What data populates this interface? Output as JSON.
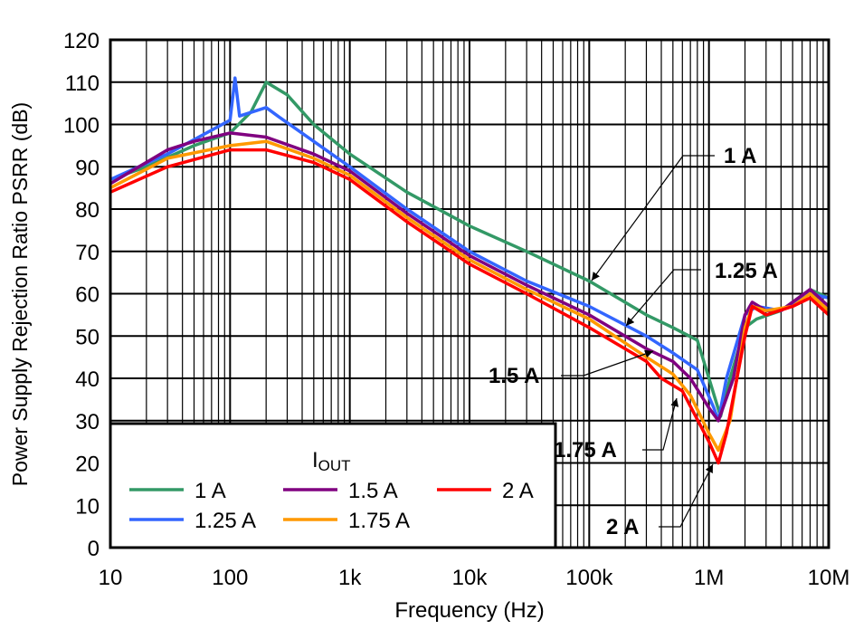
{
  "chart_data": {
    "type": "line",
    "title": "",
    "xlabel": "Frequency (Hz)",
    "ylabel": "Power Supply Rejection Ratio PSRR (dB)",
    "x_scale": "log",
    "xlim": [
      10,
      10000000
    ],
    "ylim": [
      0,
      120
    ],
    "grid": true,
    "x_ticks": [
      10,
      100,
      1000,
      10000,
      100000,
      1000000,
      10000000
    ],
    "x_tick_labels": [
      "10",
      "100",
      "1k",
      "10k",
      "100k",
      "1M",
      "10M"
    ],
    "y_ticks": [
      0,
      10,
      20,
      30,
      40,
      50,
      60,
      70,
      80,
      90,
      100,
      110,
      120
    ],
    "y_tick_labels": [
      "0",
      "10",
      "20",
      "30",
      "40",
      "50",
      "60",
      "70",
      "80",
      "90",
      "100",
      "110",
      "120"
    ],
    "legend": {
      "title": "I",
      "title_sub": "OUT",
      "placement": "bottom-left"
    },
    "series": [
      {
        "name": "1 A",
        "color": "#339966",
        "x": [
          10,
          20,
          50,
          100,
          150,
          200,
          300,
          500,
          1000,
          3000,
          10000,
          30000,
          100000,
          300000,
          500000,
          800000,
          1000000,
          1250000,
          1500000,
          2000000,
          2500000,
          4000000,
          7000000,
          10000000
        ],
        "y": [
          87,
          90,
          95,
          98,
          103,
          110,
          107,
          100,
          93,
          84,
          76,
          70,
          63,
          55,
          52,
          49,
          40,
          31,
          40,
          52,
          54,
          56,
          61,
          59
        ]
      },
      {
        "name": "1.25 A",
        "color": "#3366ff",
        "x": [
          10,
          30,
          100,
          110,
          120,
          200,
          250,
          500,
          1000,
          3000,
          10000,
          30000,
          100000,
          300000,
          500000,
          800000,
          1100000,
          1200000,
          1400000,
          2000000,
          2500000,
          4000000,
          7000000,
          10000000
        ],
        "y": [
          87,
          93,
          101,
          111,
          102,
          104,
          102,
          96,
          90,
          80,
          70,
          63,
          57,
          50,
          46,
          42,
          33,
          30,
          40,
          55,
          57,
          56,
          60,
          59
        ]
      },
      {
        "name": "1.5 A",
        "color": "#800080",
        "x": [
          10,
          30,
          50,
          100,
          200,
          500,
          1000,
          3000,
          10000,
          30000,
          100000,
          300000,
          500000,
          700000,
          1000000,
          1200000,
          1600000,
          2000000,
          2300000,
          3000000,
          4000000,
          7000000,
          10000000
        ],
        "y": [
          86,
          94,
          96,
          98,
          97,
          93,
          89,
          79,
          69,
          62,
          55,
          47,
          44,
          40,
          33,
          30,
          40,
          55,
          58,
          56,
          56,
          61,
          57
        ]
      },
      {
        "name": "1.75 A",
        "color": "#ff9900",
        "x": [
          10,
          30,
          100,
          200,
          500,
          1000,
          3000,
          10000,
          30000,
          100000,
          300000,
          500000,
          700000,
          1000000,
          1200000,
          1500000,
          2000000,
          2300000,
          3000000,
          5000000,
          7000000,
          10000000
        ],
        "y": [
          85,
          92,
          95,
          96,
          92,
          88,
          78,
          68,
          61,
          54,
          45,
          41,
          36,
          27,
          23,
          30,
          52,
          57,
          56,
          57,
          60,
          56
        ]
      },
      {
        "name": "2 A",
        "color": "#ff0000",
        "x": [
          10,
          30,
          100,
          200,
          500,
          1000,
          3000,
          10000,
          30000,
          100000,
          300000,
          400000,
          600000,
          1000000,
          1200000,
          1400000,
          2000000,
          2300000,
          3000000,
          5000000,
          7000000,
          10000000
        ],
        "y": [
          84,
          90,
          94,
          94,
          91,
          87,
          77,
          67,
          60,
          52,
          44,
          40,
          37,
          25,
          20,
          27,
          50,
          57,
          55,
          57,
          59,
          55
        ]
      }
    ],
    "annotations": [
      {
        "text": "1 A",
        "points_to": [
          300000,
          63
        ]
      },
      {
        "text": "1.25 A",
        "points_to": [
          500000,
          52
        ]
      },
      {
        "text": "1.5 A",
        "points_to": [
          550000,
          46
        ]
      },
      {
        "text": "1.75 A",
        "points_to": [
          550000,
          35
        ]
      },
      {
        "text": "2 A",
        "points_to": [
          1200000,
          19
        ]
      }
    ]
  }
}
